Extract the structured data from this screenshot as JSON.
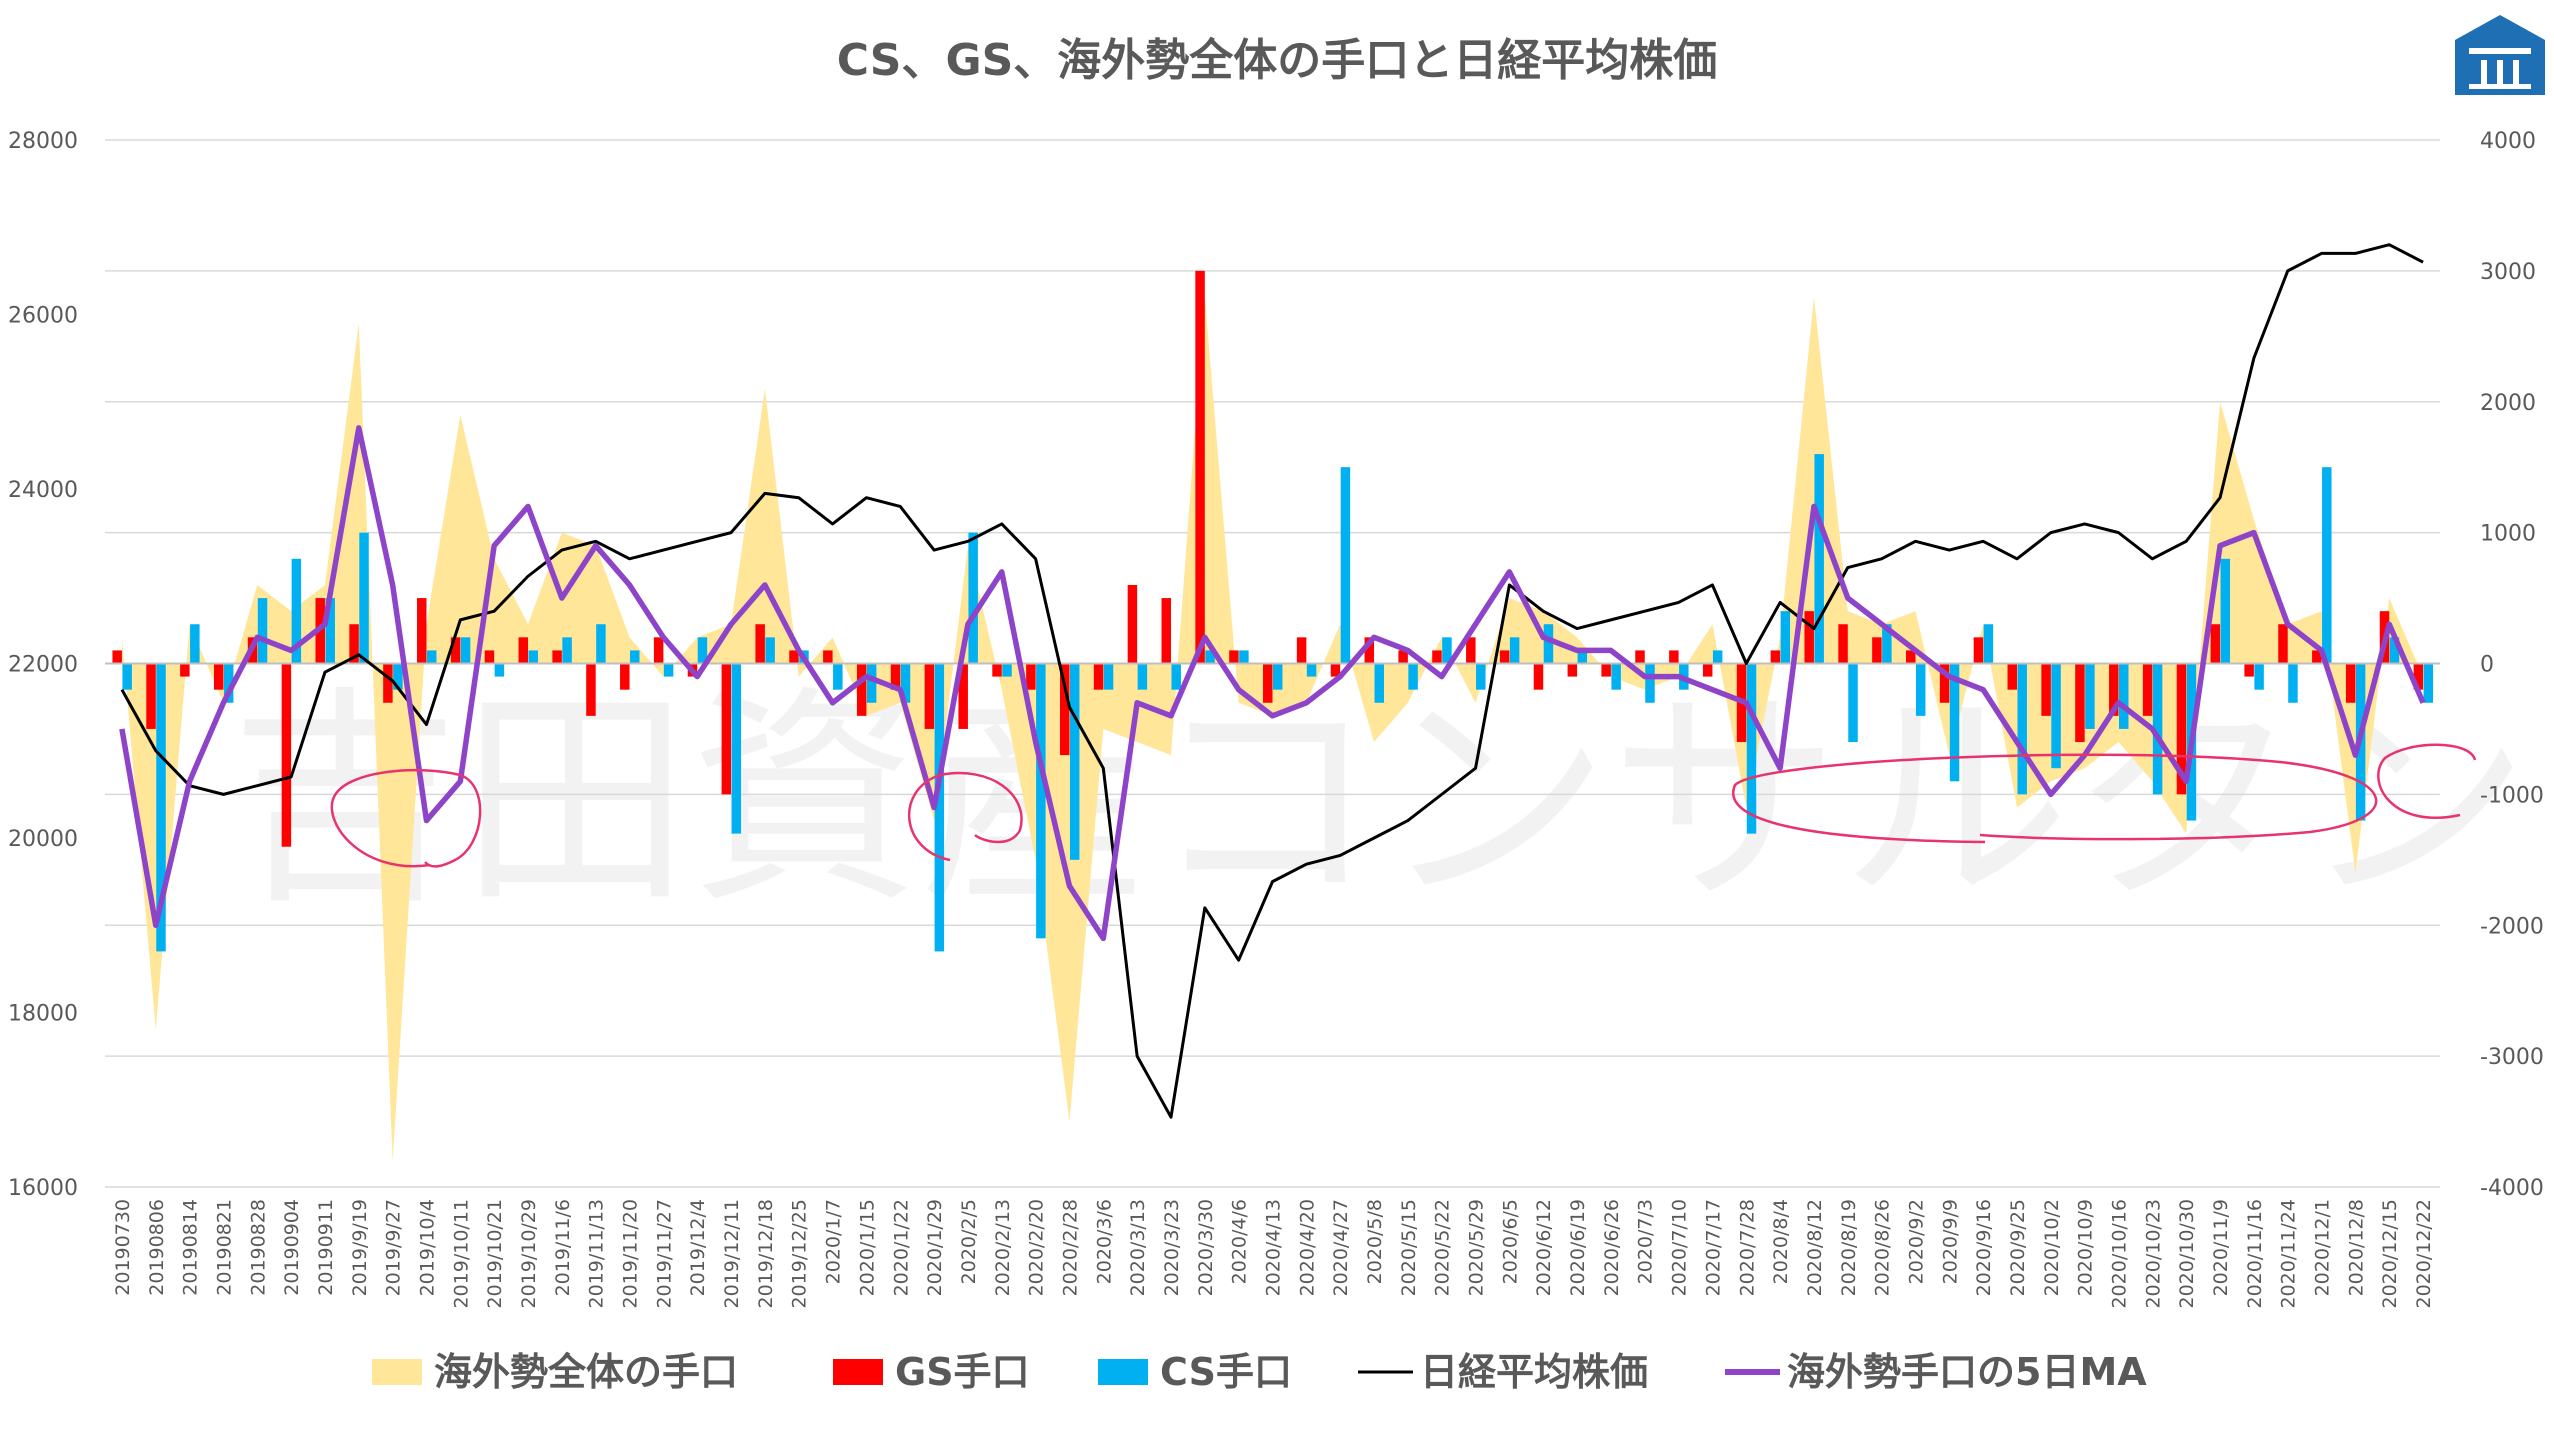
{
  "chart_data": {
    "type": "bar",
    "title": "CS、GS、海外勢全体の手口と日経平均株価",
    "y_left": {
      "min": 16000,
      "max": 28000,
      "ticks": [
        16000,
        18000,
        20000,
        22000,
        24000,
        26000,
        28000
      ]
    },
    "y_right": {
      "min": -4000,
      "max": 4000,
      "ticks": [
        -4000,
        -3000,
        -2000,
        -1000,
        0,
        1000,
        2000,
        3000,
        4000
      ]
    },
    "categories": [
      "20190730",
      "20190806",
      "20190814",
      "20190821",
      "20190828",
      "20190904",
      "20190911",
      "2019/9/19",
      "2019/9/27",
      "2019/10/4",
      "2019/10/11",
      "2019/10/21",
      "2019/10/29",
      "2019/11/6",
      "2019/11/13",
      "2019/11/20",
      "2019/11/27",
      "2019/12/4",
      "2019/12/11",
      "2019/12/18",
      "2019/12/25",
      "2020/1/7",
      "2020/1/15",
      "2020/1/22",
      "2020/1/29",
      "2020/2/5",
      "2020/2/13",
      "2020/2/20",
      "2020/2/28",
      "2020/3/6",
      "2020/3/13",
      "2020/3/23",
      "2020/3/30",
      "2020/4/6",
      "2020/4/13",
      "2020/4/20",
      "2020/4/27",
      "2020/5/8",
      "2020/5/15",
      "2020/5/22",
      "2020/5/29",
      "2020/6/5",
      "2020/6/12",
      "2020/6/19",
      "2020/6/26",
      "2020/7/3",
      "2020/7/10",
      "2020/7/17",
      "2020/7/28",
      "2020/8/4",
      "2020/8/12",
      "2020/8/19",
      "2020/8/26",
      "2020/9/2",
      "2020/9/9",
      "2020/9/16",
      "2020/9/25",
      "2020/10/2",
      "2020/10/9",
      "2020/10/16",
      "2020/10/23",
      "2020/10/30",
      "2020/11/9",
      "2020/11/16",
      "2020/11/24",
      "2020/12/1",
      "2020/12/8",
      "2020/12/15",
      "2020/12/22"
    ],
    "series": [
      {
        "name": "海外勢全体の手口",
        "kind": "area",
        "axis": "right",
        "color": "#FFE699",
        "values": [
          200,
          -2800,
          300,
          -300,
          600,
          400,
          600,
          2600,
          -3800,
          300,
          1900,
          800,
          300,
          1000,
          900,
          200,
          -100,
          200,
          300,
          2100,
          -100,
          200,
          -400,
          -300,
          -1200,
          900,
          -200,
          -1500,
          -3500,
          -500,
          -600,
          -700,
          2800,
          -300,
          -400,
          -300,
          300,
          -600,
          -300,
          200,
          -300,
          500,
          400,
          200,
          -100,
          -200,
          -100,
          300,
          -1100,
          200,
          2800,
          400,
          300,
          400,
          -700,
          300,
          -1100,
          -900,
          -800,
          -600,
          -900,
          -1300,
          2000,
          1100,
          300,
          400,
          -1600,
          500,
          -100
        ]
      },
      {
        "name": "GS手口",
        "kind": "bar",
        "axis": "right",
        "color": "#FF0000",
        "values": [
          100,
          -500,
          -100,
          -200,
          200,
          -1400,
          500,
          300,
          -300,
          500,
          200,
          100,
          200,
          100,
          -400,
          -200,
          200,
          -100,
          -1000,
          300,
          100,
          100,
          -400,
          -200,
          -500,
          -500,
          -100,
          -200,
          -700,
          -200,
          600,
          500,
          3000,
          100,
          -300,
          200,
          -100,
          200,
          100,
          100,
          200,
          100,
          -200,
          -100,
          -100,
          100,
          100,
          -100,
          -600,
          100,
          400,
          300,
          200,
          100,
          -300,
          200,
          -200,
          -400,
          -600,
          -400,
          -400,
          -1000,
          300,
          -100,
          300,
          100,
          -300,
          400,
          -200
        ]
      },
      {
        "name": "CS手口",
        "kind": "bar",
        "axis": "right",
        "color": "#00B0F0",
        "values": [
          -200,
          -2200,
          300,
          -300,
          500,
          800,
          500,
          1000,
          -200,
          100,
          200,
          -100,
          100,
          200,
          300,
          100,
          -100,
          200,
          -1300,
          200,
          100,
          -200,
          -300,
          -300,
          -2200,
          1000,
          -100,
          -2100,
          -1500,
          -200,
          -200,
          -200,
          100,
          100,
          -200,
          -100,
          1500,
          -300,
          -200,
          200,
          -200,
          200,
          300,
          100,
          -200,
          -300,
          -200,
          100,
          -1300,
          400,
          1600,
          -600,
          300,
          -400,
          -900,
          300,
          -1000,
          -800,
          -500,
          -500,
          -1000,
          -1200,
          800,
          -200,
          -300,
          1500,
          -1200,
          200,
          -300
        ]
      },
      {
        "name": "日経平均株価",
        "kind": "line",
        "axis": "left",
        "color": "#000000",
        "values": [
          21700,
          21000,
          20600,
          20500,
          20600,
          20700,
          21900,
          22100,
          21800,
          21300,
          22500,
          22600,
          23000,
          23300,
          23400,
          23200,
          23300,
          23400,
          23500,
          23950,
          23900,
          23600,
          23900,
          23800,
          23300,
          23400,
          23600,
          23200,
          21500,
          20800,
          17500,
          16800,
          19200,
          18600,
          19500,
          19700,
          19800,
          20000,
          20200,
          20500,
          20800,
          22900,
          22600,
          22400,
          22500,
          22600,
          22700,
          22900,
          22000,
          22700,
          22400,
          23100,
          23200,
          23400,
          23300,
          23400,
          23200,
          23500,
          23600,
          23500,
          23200,
          23400,
          23900,
          25500,
          26500,
          26700,
          26700,
          26800,
          26600
        ]
      },
      {
        "name": "海外勢手口の5日MA",
        "kind": "line",
        "axis": "right",
        "color": "#8E44C9",
        "values": [
          -500,
          -2000,
          -900,
          -300,
          200,
          100,
          300,
          1800,
          600,
          -1200,
          -900,
          900,
          1200,
          500,
          900,
          600,
          200,
          -100,
          300,
          600,
          100,
          -300,
          -100,
          -200,
          -1100,
          300,
          700,
          -600,
          -1700,
          -2100,
          -300,
          -400,
          200,
          -200,
          -400,
          -300,
          -100,
          200,
          100,
          -100,
          300,
          700,
          200,
          100,
          100,
          -100,
          -100,
          -200,
          -300,
          -800,
          1200,
          500,
          300,
          100,
          -100,
          -200,
          -600,
          -1000,
          -700,
          -300,
          -500,
          -900,
          900,
          1000,
          300,
          100,
          -700,
          300,
          -300
        ]
      }
    ],
    "legend_position": "bottom"
  },
  "legend": [
    {
      "label": "海外勢全体の手口",
      "type": "swatch",
      "color": "#FFE699"
    },
    {
      "label": "GS手口",
      "type": "swatch",
      "color": "#FF0000"
    },
    {
      "label": "CS手口",
      "type": "swatch",
      "color": "#00B0F0"
    },
    {
      "label": "日経平均株価",
      "type": "line",
      "color": "#000000"
    },
    {
      "label": "海外勢手口の5日MA",
      "type": "line",
      "color": "#8E44C9"
    }
  ],
  "logo": {
    "icon": "building-logo-icon",
    "color": "#1F6FB5"
  },
  "annotations": {
    "color": "#E8336D",
    "description": "hand-drawn circles"
  }
}
